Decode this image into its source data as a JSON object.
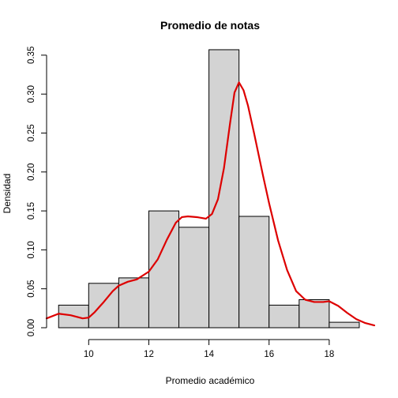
{
  "chart_data": {
    "type": "bar",
    "subtype": "histogram-with-density",
    "title": "Promedio de notas",
    "xlabel": "Promedio académico",
    "ylabel": "Densidad",
    "bins": [
      {
        "x0": 9,
        "x1": 10,
        "density": 0.029
      },
      {
        "x0": 10,
        "x1": 11,
        "density": 0.057
      },
      {
        "x0": 11,
        "x1": 12,
        "density": 0.064
      },
      {
        "x0": 12,
        "x1": 13,
        "density": 0.15
      },
      {
        "x0": 13,
        "x1": 14,
        "density": 0.129
      },
      {
        "x0": 14,
        "x1": 15,
        "density": 0.357
      },
      {
        "x0": 15,
        "x1": 16,
        "density": 0.143
      },
      {
        "x0": 16,
        "x1": 17,
        "density": 0.029
      },
      {
        "x0": 17,
        "x1": 18,
        "density": 0.036
      },
      {
        "x0": 18,
        "x1": 19,
        "density": 0.007
      }
    ],
    "density_curve": {
      "x": [
        8.6,
        9.0,
        9.4,
        9.8,
        10.0,
        10.2,
        10.5,
        10.8,
        11.0,
        11.3,
        11.6,
        12.0,
        12.3,
        12.6,
        12.9,
        13.1,
        13.3,
        13.6,
        13.9,
        14.1,
        14.3,
        14.5,
        14.7,
        14.85,
        15.0,
        15.15,
        15.3,
        15.5,
        15.8,
        16.0,
        16.3,
        16.6,
        16.9,
        17.2,
        17.5,
        17.8,
        18.0,
        18.3,
        18.6,
        18.9,
        19.2,
        19.5
      ],
      "y": [
        0.012,
        0.018,
        0.016,
        0.012,
        0.013,
        0.02,
        0.033,
        0.047,
        0.054,
        0.059,
        0.062,
        0.072,
        0.088,
        0.113,
        0.135,
        0.142,
        0.143,
        0.142,
        0.14,
        0.146,
        0.165,
        0.205,
        0.262,
        0.302,
        0.315,
        0.305,
        0.285,
        0.25,
        0.195,
        0.16,
        0.112,
        0.074,
        0.047,
        0.036,
        0.033,
        0.033,
        0.034,
        0.028,
        0.019,
        0.011,
        0.006,
        0.003
      ],
      "color": "#dd0000"
    },
    "bar_fill": "#d3d3d3",
    "bar_stroke": "#000000",
    "xlim": [
      8.6,
      19.5
    ],
    "ylim": [
      0,
      0.36
    ],
    "x_ticks": [
      10,
      12,
      14,
      16,
      18
    ],
    "y_ticks": [
      0.0,
      0.05,
      0.1,
      0.15,
      0.2,
      0.25,
      0.3,
      0.35
    ],
    "y_tick_labels": [
      "0.00",
      "0.05",
      "0.10",
      "0.15",
      "0.20",
      "0.25",
      "0.30",
      "0.35"
    ],
    "grid": false
  }
}
